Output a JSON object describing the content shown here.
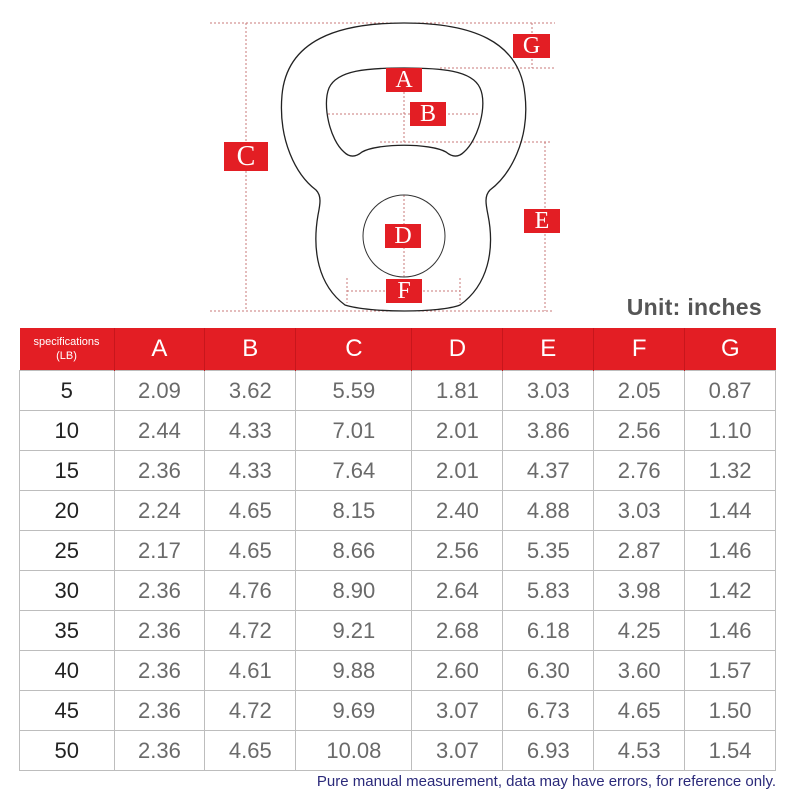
{
  "diagram": {
    "labels": [
      "A",
      "B",
      "C",
      "D",
      "E",
      "F",
      "G"
    ],
    "accent_color": "#e31e24"
  },
  "unit_label": "Unit: inches",
  "table": {
    "header_first": [
      "specifications",
      "(LB)"
    ],
    "columns": [
      "A",
      "B",
      "C",
      "D",
      "E",
      "F",
      "G"
    ],
    "rows": [
      {
        "weight": "5",
        "values": [
          "2.09",
          "3.62",
          "5.59",
          "1.81",
          "3.03",
          "2.05",
          "0.87"
        ]
      },
      {
        "weight": "10",
        "values": [
          "2.44",
          "4.33",
          "7.01",
          "2.01",
          "3.86",
          "2.56",
          "1.10"
        ]
      },
      {
        "weight": "15",
        "values": [
          "2.36",
          "4.33",
          "7.64",
          "2.01",
          "4.37",
          "2.76",
          "1.32"
        ]
      },
      {
        "weight": "20",
        "values": [
          "2.24",
          "4.65",
          "8.15",
          "2.40",
          "4.88",
          "3.03",
          "1.44"
        ]
      },
      {
        "weight": "25",
        "values": [
          "2.17",
          "4.65",
          "8.66",
          "2.56",
          "5.35",
          "2.87",
          "1.46"
        ]
      },
      {
        "weight": "30",
        "values": [
          "2.36",
          "4.76",
          "8.90",
          "2.64",
          "5.83",
          "3.98",
          "1.42"
        ]
      },
      {
        "weight": "35",
        "values": [
          "2.36",
          "4.72",
          "9.21",
          "2.68",
          "6.18",
          "4.25",
          "1.46"
        ]
      },
      {
        "weight": "40",
        "values": [
          "2.36",
          "4.61",
          "9.88",
          "2.60",
          "6.30",
          "3.60",
          "1.57"
        ]
      },
      {
        "weight": "45",
        "values": [
          "2.36",
          "4.72",
          "9.69",
          "3.07",
          "6.73",
          "4.65",
          "1.50"
        ]
      },
      {
        "weight": "50",
        "values": [
          "2.36",
          "4.65",
          "10.08",
          "3.07",
          "6.93",
          "4.53",
          "1.54"
        ]
      }
    ]
  },
  "note": "Pure manual measurement, data may have errors, for reference only."
}
